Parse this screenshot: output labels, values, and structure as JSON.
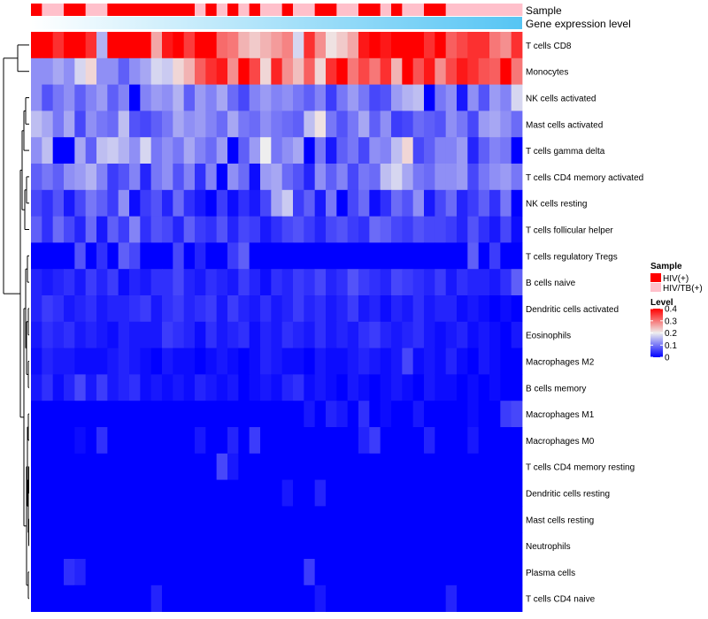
{
  "chart_data": {
    "type": "heatmap",
    "title": "",
    "annotation_labels": {
      "sample": "Sample",
      "gene_expression": "Gene expression level"
    },
    "rows": [
      "T cells CD8",
      "Monocytes",
      "NK cells activated",
      "Mast cells activated",
      "T cells gamma delta",
      "T cells CD4 memory activated",
      "NK cells resting",
      "T cells follicular helper",
      "T cells regulatory  Tregs",
      "B cells naive",
      "Dendritic cells activated",
      "Eosinophils",
      "Macrophages M2",
      "B cells memory",
      "Macrophages M1",
      "Macrophages M0",
      "T cells CD4 memory resting",
      "Dendritic cells resting",
      "Mast cells resting",
      "Neutrophils",
      "Plasma cells",
      "T cells CD4 naive"
    ],
    "columns": 45,
    "sample_groups": [
      "HIV(+)",
      "HIV/TB(+)",
      "HIV/TB(+)",
      "HIV(+)",
      "HIV(+)",
      "HIV/TB(+)",
      "HIV/TB(+)",
      "HIV(+)",
      "HIV(+)",
      "HIV(+)",
      "HIV(+)",
      "HIV(+)",
      "HIV(+)",
      "HIV(+)",
      "HIV(+)",
      "HIV/TB(+)",
      "HIV(+)",
      "HIV/TB(+)",
      "HIV(+)",
      "HIV/TB(+)",
      "HIV(+)",
      "HIV/TB(+)",
      "HIV/TB(+)",
      "HIV(+)",
      "HIV/TB(+)",
      "HIV/TB(+)",
      "HIV(+)",
      "HIV(+)",
      "HIV/TB(+)",
      "HIV/TB(+)",
      "HIV(+)",
      "HIV(+)",
      "HIV/TB(+)",
      "HIV(+)",
      "HIV/TB(+)",
      "HIV/TB(+)",
      "HIV(+)",
      "HIV(+)",
      "HIV/TB(+)",
      "HIV/TB(+)",
      "HIV/TB(+)",
      "HIV/TB(+)",
      "HIV/TB(+)",
      "HIV/TB(+)",
      "HIV/TB(+)"
    ],
    "values": [
      [
        0.4,
        0.4,
        0.36,
        0.4,
        0.4,
        0.36,
        0.15,
        0.4,
        0.4,
        0.4,
        0.4,
        0.26,
        0.38,
        0.4,
        0.35,
        0.4,
        0.4,
        0.31,
        0.3,
        0.25,
        0.23,
        0.25,
        0.27,
        0.29,
        0.18,
        0.36,
        0.28,
        0.21,
        0.23,
        0.26,
        0.38,
        0.4,
        0.38,
        0.4,
        0.4,
        0.4,
        0.36,
        0.4,
        0.32,
        0.34,
        0.36,
        0.36,
        0.3,
        0.28,
        0.36
      ],
      [
        0.12,
        0.12,
        0.14,
        0.12,
        0.18,
        0.22,
        0.12,
        0.12,
        0.08,
        0.12,
        0.14,
        0.18,
        0.17,
        0.22,
        0.25,
        0.32,
        0.36,
        0.38,
        0.28,
        0.4,
        0.34,
        0.22,
        0.37,
        0.28,
        0.24,
        0.32,
        0.22,
        0.36,
        0.4,
        0.3,
        0.34,
        0.3,
        0.36,
        0.25,
        0.4,
        0.33,
        0.38,
        0.28,
        0.34,
        0.38,
        0.36,
        0.33,
        0.32,
        0.4,
        0.3
      ],
      [
        0.12,
        0.07,
        0.1,
        0.12,
        0.08,
        0.11,
        0.13,
        0.08,
        0.11,
        0.0,
        0.11,
        0.13,
        0.12,
        0.15,
        0.08,
        0.13,
        0.11,
        0.14,
        0.09,
        0.06,
        0.11,
        0.13,
        0.11,
        0.12,
        0.1,
        0.08,
        0.11,
        0.05,
        0.1,
        0.13,
        0.1,
        0.06,
        0.07,
        0.13,
        0.15,
        0.16,
        0.0,
        0.1,
        0.12,
        0.02,
        0.12,
        0.07,
        0.13,
        0.11,
        0.18
      ],
      [
        0.16,
        0.14,
        0.1,
        0.14,
        0.06,
        0.12,
        0.1,
        0.09,
        0.16,
        0.07,
        0.06,
        0.08,
        0.1,
        0.14,
        0.12,
        0.13,
        0.11,
        0.09,
        0.14,
        0.1,
        0.09,
        0.12,
        0.1,
        0.09,
        0.08,
        0.16,
        0.21,
        0.1,
        0.07,
        0.1,
        0.14,
        0.08,
        0.12,
        0.05,
        0.06,
        0.09,
        0.08,
        0.07,
        0.12,
        0.1,
        0.06,
        0.13,
        0.14,
        0.12,
        0.09
      ],
      [
        0.12,
        0.16,
        0.0,
        0.0,
        0.14,
        0.08,
        0.16,
        0.17,
        0.15,
        0.12,
        0.18,
        0.1,
        0.12,
        0.1,
        0.14,
        0.11,
        0.09,
        0.13,
        0.0,
        0.08,
        0.13,
        0.2,
        0.1,
        0.12,
        0.14,
        0.0,
        0.1,
        0.02,
        0.08,
        0.1,
        0.06,
        0.12,
        0.11,
        0.16,
        0.22,
        0.06,
        0.08,
        0.11,
        0.11,
        0.13,
        0.03,
        0.08,
        0.11,
        0.1,
        0.0
      ],
      [
        0.08,
        0.1,
        0.08,
        0.12,
        0.13,
        0.15,
        0.11,
        0.05,
        0.07,
        0.11,
        0.03,
        0.1,
        0.12,
        0.07,
        0.11,
        0.04,
        0.11,
        0.0,
        0.12,
        0.09,
        0.01,
        0.13,
        0.14,
        0.09,
        0.07,
        0.03,
        0.12,
        0.08,
        0.11,
        0.06,
        0.1,
        0.09,
        0.16,
        0.18,
        0.14,
        0.1,
        0.09,
        0.12,
        0.12,
        0.13,
        0.06,
        0.1,
        0.12,
        0.13,
        0.1
      ],
      [
        0.06,
        0.04,
        0.07,
        0.02,
        0.06,
        0.1,
        0.08,
        0.05,
        0.12,
        0.01,
        0.05,
        0.07,
        0.03,
        0.09,
        0.04,
        0.02,
        0.0,
        0.05,
        0.01,
        0.04,
        0.02,
        0.06,
        0.14,
        0.17,
        0.05,
        0.08,
        0.02,
        0.1,
        0.0,
        0.06,
        0.09,
        0.01,
        0.04,
        0.09,
        0.07,
        0.12,
        0.02,
        0.06,
        0.09,
        0.03,
        0.05,
        0.08,
        0.04,
        0.1,
        0.0
      ],
      [
        0.08,
        0.04,
        0.09,
        0.06,
        0.03,
        0.09,
        0.02,
        0.08,
        0.05,
        0.11,
        0.04,
        0.07,
        0.06,
        0.03,
        0.08,
        0.05,
        0.04,
        0.07,
        0.03,
        0.06,
        0.05,
        0.02,
        0.04,
        0.06,
        0.07,
        0.05,
        0.03,
        0.06,
        0.07,
        0.05,
        0.04,
        0.09,
        0.08,
        0.06,
        0.05,
        0.07,
        0.06,
        0.06,
        0.05,
        0.03,
        0.07,
        0.04,
        0.02,
        0.06,
        0.01
      ],
      [
        0.0,
        0.0,
        0.0,
        0.0,
        0.07,
        0.0,
        0.04,
        0.0,
        0.08,
        0.06,
        0.0,
        0.0,
        0.0,
        0.06,
        0.0,
        0.03,
        0.0,
        0.0,
        0.05,
        0.08,
        0.0,
        0.0,
        0.0,
        0.0,
        0.0,
        0.0,
        0.0,
        0.0,
        0.0,
        0.0,
        0.0,
        0.0,
        0.0,
        0.0,
        0.0,
        0.0,
        0.0,
        0.0,
        0.0,
        0.0,
        0.08,
        0.0,
        0.05,
        0.0,
        0.0
      ],
      [
        0.03,
        0.02,
        0.03,
        0.04,
        0.02,
        0.05,
        0.03,
        0.05,
        0.01,
        0.03,
        0.02,
        0.04,
        0.04,
        0.06,
        0.03,
        0.02,
        0.04,
        0.03,
        0.02,
        0.05,
        0.03,
        0.01,
        0.04,
        0.03,
        0.05,
        0.04,
        0.06,
        0.03,
        0.04,
        0.07,
        0.05,
        0.04,
        0.03,
        0.06,
        0.05,
        0.04,
        0.03,
        0.05,
        0.02,
        0.04,
        0.03,
        0.03,
        0.02,
        0.04,
        0.08
      ],
      [
        0.03,
        0.05,
        0.04,
        0.02,
        0.03,
        0.04,
        0.02,
        0.03,
        0.03,
        0.04,
        0.05,
        0.02,
        0.04,
        0.05,
        0.03,
        0.04,
        0.05,
        0.02,
        0.05,
        0.03,
        0.02,
        0.04,
        0.02,
        0.03,
        0.05,
        0.03,
        0.04,
        0.02,
        0.03,
        0.05,
        0.02,
        0.03,
        0.01,
        0.03,
        0.02,
        0.04,
        0.02,
        0.03,
        0.03,
        0.01,
        0.02,
        0.01,
        0.0,
        0.01,
        0.0
      ],
      [
        0.02,
        0.04,
        0.03,
        0.04,
        0.02,
        0.03,
        0.02,
        0.01,
        0.03,
        0.02,
        0.02,
        0.02,
        0.05,
        0.04,
        0.03,
        0.01,
        0.04,
        0.02,
        0.03,
        0.04,
        0.01,
        0.03,
        0.02,
        0.04,
        0.03,
        0.02,
        0.04,
        0.02,
        0.03,
        0.02,
        0.04,
        0.05,
        0.03,
        0.02,
        0.03,
        0.04,
        0.02,
        0.01,
        0.02,
        0.03,
        0.01,
        0.02,
        0.01,
        0.0,
        0.02
      ],
      [
        0.01,
        0.03,
        0.02,
        0.02,
        0.01,
        0.01,
        0.01,
        0.02,
        0.03,
        0.02,
        0.01,
        0.0,
        0.02,
        0.01,
        0.01,
        0.0,
        0.01,
        0.02,
        0.01,
        0.0,
        0.01,
        0.03,
        0.02,
        0.01,
        0.01,
        0.0,
        0.02,
        0.01,
        0.01,
        0.02,
        0.03,
        0.02,
        0.01,
        0.02,
        0.06,
        0.01,
        0.02,
        0.01,
        0.03,
        0.01,
        0.0,
        0.02,
        0.01,
        0.0,
        0.0
      ],
      [
        0.02,
        0.04,
        0.01,
        0.03,
        0.06,
        0.02,
        0.05,
        0.02,
        0.03,
        0.04,
        0.01,
        0.02,
        0.01,
        0.02,
        0.01,
        0.03,
        0.02,
        0.01,
        0.02,
        0.0,
        0.01,
        0.02,
        0.01,
        0.03,
        0.04,
        0.01,
        0.02,
        0.01,
        0.0,
        0.02,
        0.01,
        0.0,
        0.01,
        0.02,
        0.01,
        0.0,
        0.02,
        0.01,
        0.01,
        0.0,
        0.01,
        0.0,
        0.01,
        0.0,
        0.0
      ],
      [
        0.0,
        0.0,
        0.0,
        0.0,
        0.0,
        0.0,
        0.0,
        0.0,
        0.0,
        0.0,
        0.0,
        0.0,
        0.0,
        0.0,
        0.0,
        0.0,
        0.0,
        0.0,
        0.0,
        0.0,
        0.0,
        0.0,
        0.0,
        0.0,
        0.0,
        0.02,
        0.0,
        0.03,
        0.02,
        0.0,
        0.04,
        0.0,
        0.01,
        0.0,
        0.0,
        0.02,
        0.0,
        0.0,
        0.0,
        0.0,
        0.01,
        0.0,
        0.0,
        0.05,
        0.06
      ],
      [
        0.0,
        0.0,
        0.0,
        0.0,
        0.01,
        0.0,
        0.04,
        0.0,
        0.0,
        0.0,
        0.0,
        0.0,
        0.0,
        0.0,
        0.0,
        0.02,
        0.0,
        0.0,
        0.03,
        0.0,
        0.05,
        0.0,
        0.0,
        0.0,
        0.0,
        0.0,
        0.0,
        0.0,
        0.0,
        0.0,
        0.03,
        0.05,
        0.0,
        0.0,
        0.0,
        0.0,
        0.03,
        0.0,
        0.0,
        0.0,
        0.02,
        0.0,
        0.0,
        0.0,
        0.0
      ],
      [
        0.0,
        0.0,
        0.0,
        0.0,
        0.0,
        0.0,
        0.0,
        0.0,
        0.0,
        0.0,
        0.0,
        0.0,
        0.0,
        0.0,
        0.0,
        0.0,
        0.0,
        0.06,
        0.02,
        0.0,
        0.0,
        0.0,
        0.0,
        0.0,
        0.0,
        0.0,
        0.0,
        0.0,
        0.0,
        0.0,
        0.0,
        0.0,
        0.0,
        0.0,
        0.0,
        0.0,
        0.0,
        0.0,
        0.0,
        0.0,
        0.0,
        0.0,
        0.0,
        0.0,
        0.0
      ],
      [
        0.0,
        0.0,
        0.0,
        0.0,
        0.0,
        0.0,
        0.0,
        0.0,
        0.0,
        0.0,
        0.0,
        0.0,
        0.0,
        0.0,
        0.0,
        0.0,
        0.0,
        0.0,
        0.0,
        0.0,
        0.0,
        0.0,
        0.0,
        0.02,
        0.0,
        0.0,
        0.03,
        0.0,
        0.0,
        0.0,
        0.0,
        0.0,
        0.0,
        0.0,
        0.0,
        0.0,
        0.0,
        0.0,
        0.0,
        0.0,
        0.0,
        0.0,
        0.0,
        0.0,
        0.0
      ],
      [
        0.0,
        0.0,
        0.0,
        0.0,
        0.0,
        0.0,
        0.0,
        0.0,
        0.0,
        0.0,
        0.0,
        0.0,
        0.0,
        0.0,
        0.0,
        0.0,
        0.0,
        0.0,
        0.0,
        0.0,
        0.0,
        0.0,
        0.0,
        0.0,
        0.0,
        0.0,
        0.0,
        0.0,
        0.0,
        0.0,
        0.0,
        0.0,
        0.0,
        0.0,
        0.0,
        0.0,
        0.0,
        0.0,
        0.0,
        0.0,
        0.0,
        0.0,
        0.0,
        0.0,
        0.0
      ],
      [
        0.0,
        0.0,
        0.0,
        0.0,
        0.0,
        0.0,
        0.0,
        0.0,
        0.0,
        0.0,
        0.0,
        0.0,
        0.0,
        0.0,
        0.0,
        0.0,
        0.0,
        0.0,
        0.0,
        0.0,
        0.0,
        0.0,
        0.0,
        0.0,
        0.0,
        0.0,
        0.0,
        0.0,
        0.0,
        0.0,
        0.0,
        0.0,
        0.0,
        0.0,
        0.0,
        0.0,
        0.0,
        0.0,
        0.0,
        0.0,
        0.0,
        0.0,
        0.0,
        0.0,
        0.0
      ],
      [
        0.0,
        0.0,
        0.0,
        0.04,
        0.03,
        0.0,
        0.0,
        0.0,
        0.0,
        0.0,
        0.0,
        0.0,
        0.0,
        0.0,
        0.0,
        0.0,
        0.0,
        0.0,
        0.0,
        0.0,
        0.0,
        0.0,
        0.0,
        0.0,
        0.0,
        0.05,
        0.0,
        0.0,
        0.0,
        0.0,
        0.0,
        0.0,
        0.0,
        0.0,
        0.0,
        0.0,
        0.0,
        0.0,
        0.0,
        0.0,
        0.0,
        0.0,
        0.0,
        0.0,
        0.0
      ],
      [
        0.0,
        0.0,
        0.0,
        0.0,
        0.0,
        0.0,
        0.0,
        0.0,
        0.0,
        0.0,
        0.0,
        0.03,
        0.0,
        0.0,
        0.0,
        0.0,
        0.0,
        0.0,
        0.0,
        0.0,
        0.0,
        0.0,
        0.0,
        0.0,
        0.0,
        0.0,
        0.02,
        0.0,
        0.0,
        0.0,
        0.0,
        0.0,
        0.0,
        0.0,
        0.0,
        0.0,
        0.0,
        0.0,
        0.03,
        0.0,
        0.0,
        0.0,
        0.0,
        0.0,
        0.0
      ]
    ],
    "legend": {
      "sample_title": "Sample",
      "sample_entries": [
        {
          "label": "HIV(+)",
          "color": "#ff0000"
        },
        {
          "label": "HIV/TB(+)",
          "color": "#ffc0cb"
        }
      ],
      "level_title": "Level",
      "level_ticks": [
        0.4,
        0.3,
        0.2,
        0.1,
        0
      ],
      "placement": "right"
    },
    "color_scale": {
      "low": "#0000ff",
      "mid": "#eeeeee",
      "high": "#ff0000",
      "range": [
        0,
        0.4
      ],
      "midpoint": 0.2
    },
    "gene_gradient": {
      "from": "#ffffff",
      "to": "#56c5f4"
    }
  }
}
